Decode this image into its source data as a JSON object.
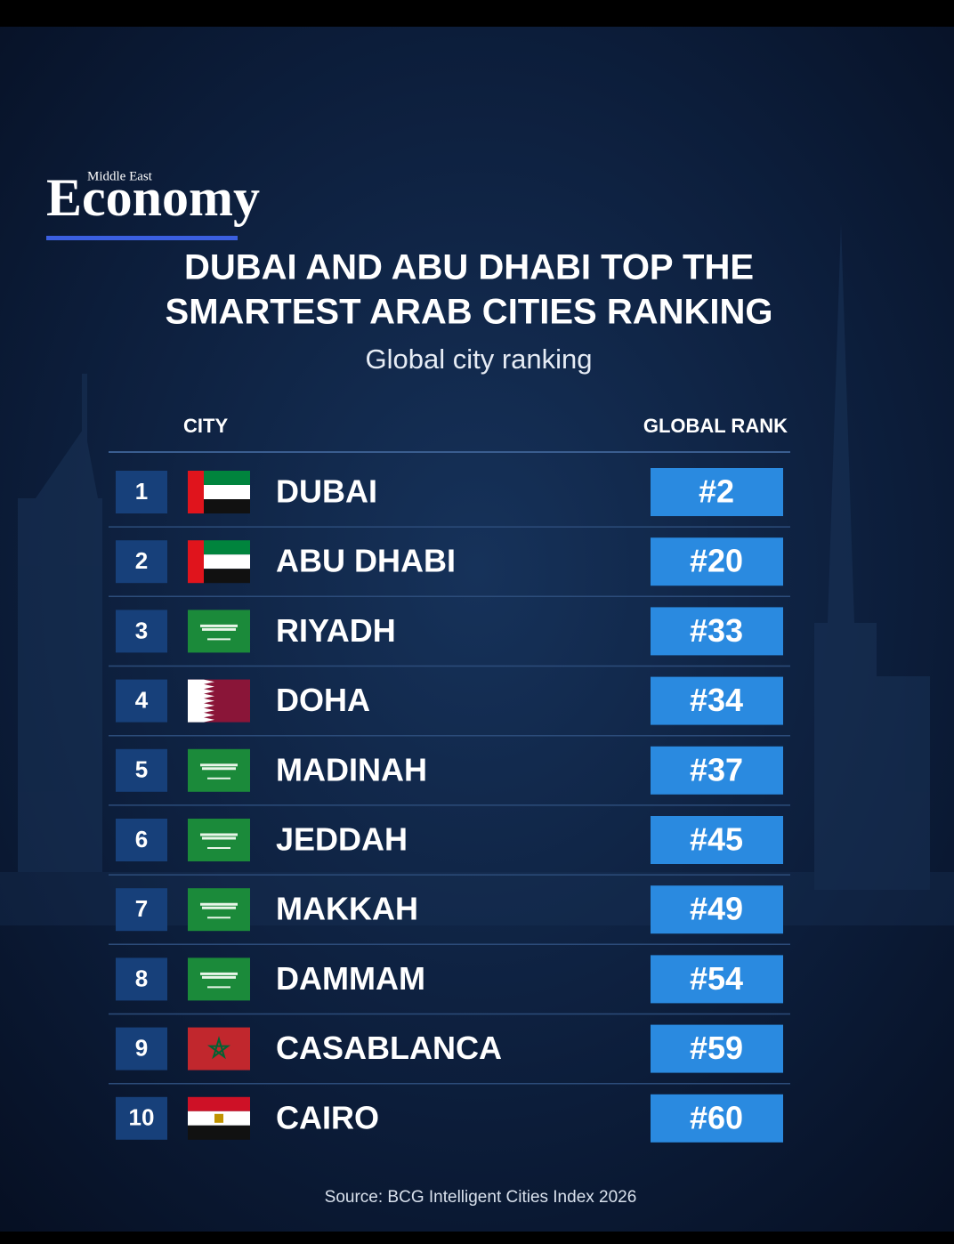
{
  "header": {
    "brand_small": "Middle East",
    "brand": "Economy"
  },
  "title": [
    "DUBAI AND ABU DHABI TOP THE",
    "SMARTEST ARAB CITIES RANKING"
  ],
  "subtitle": "Global city ranking",
  "table": {
    "columns": [
      "CITY",
      "GLOBAL RANK"
    ],
    "rows": [
      [
        1,
        "DUBAI",
        "#2"
      ],
      [
        2,
        "ABU DHABI",
        "#20"
      ],
      [
        3,
        "RIYADH",
        "#33"
      ],
      [
        4,
        "DOHA",
        "#34"
      ],
      [
        5,
        "MADINAH",
        "#37"
      ],
      [
        6,
        "JEDDAH",
        "#45"
      ],
      [
        7,
        "MAKKAH",
        "#49"
      ],
      [
        8,
        "DAMMAM",
        "#54"
      ],
      [
        9,
        "CASABLANCA",
        "#59"
      ],
      [
        10,
        "CAIRO",
        "#60"
      ]
    ]
  },
  "source": "Source: BCG Intelligent Cities Index 2026"
}
